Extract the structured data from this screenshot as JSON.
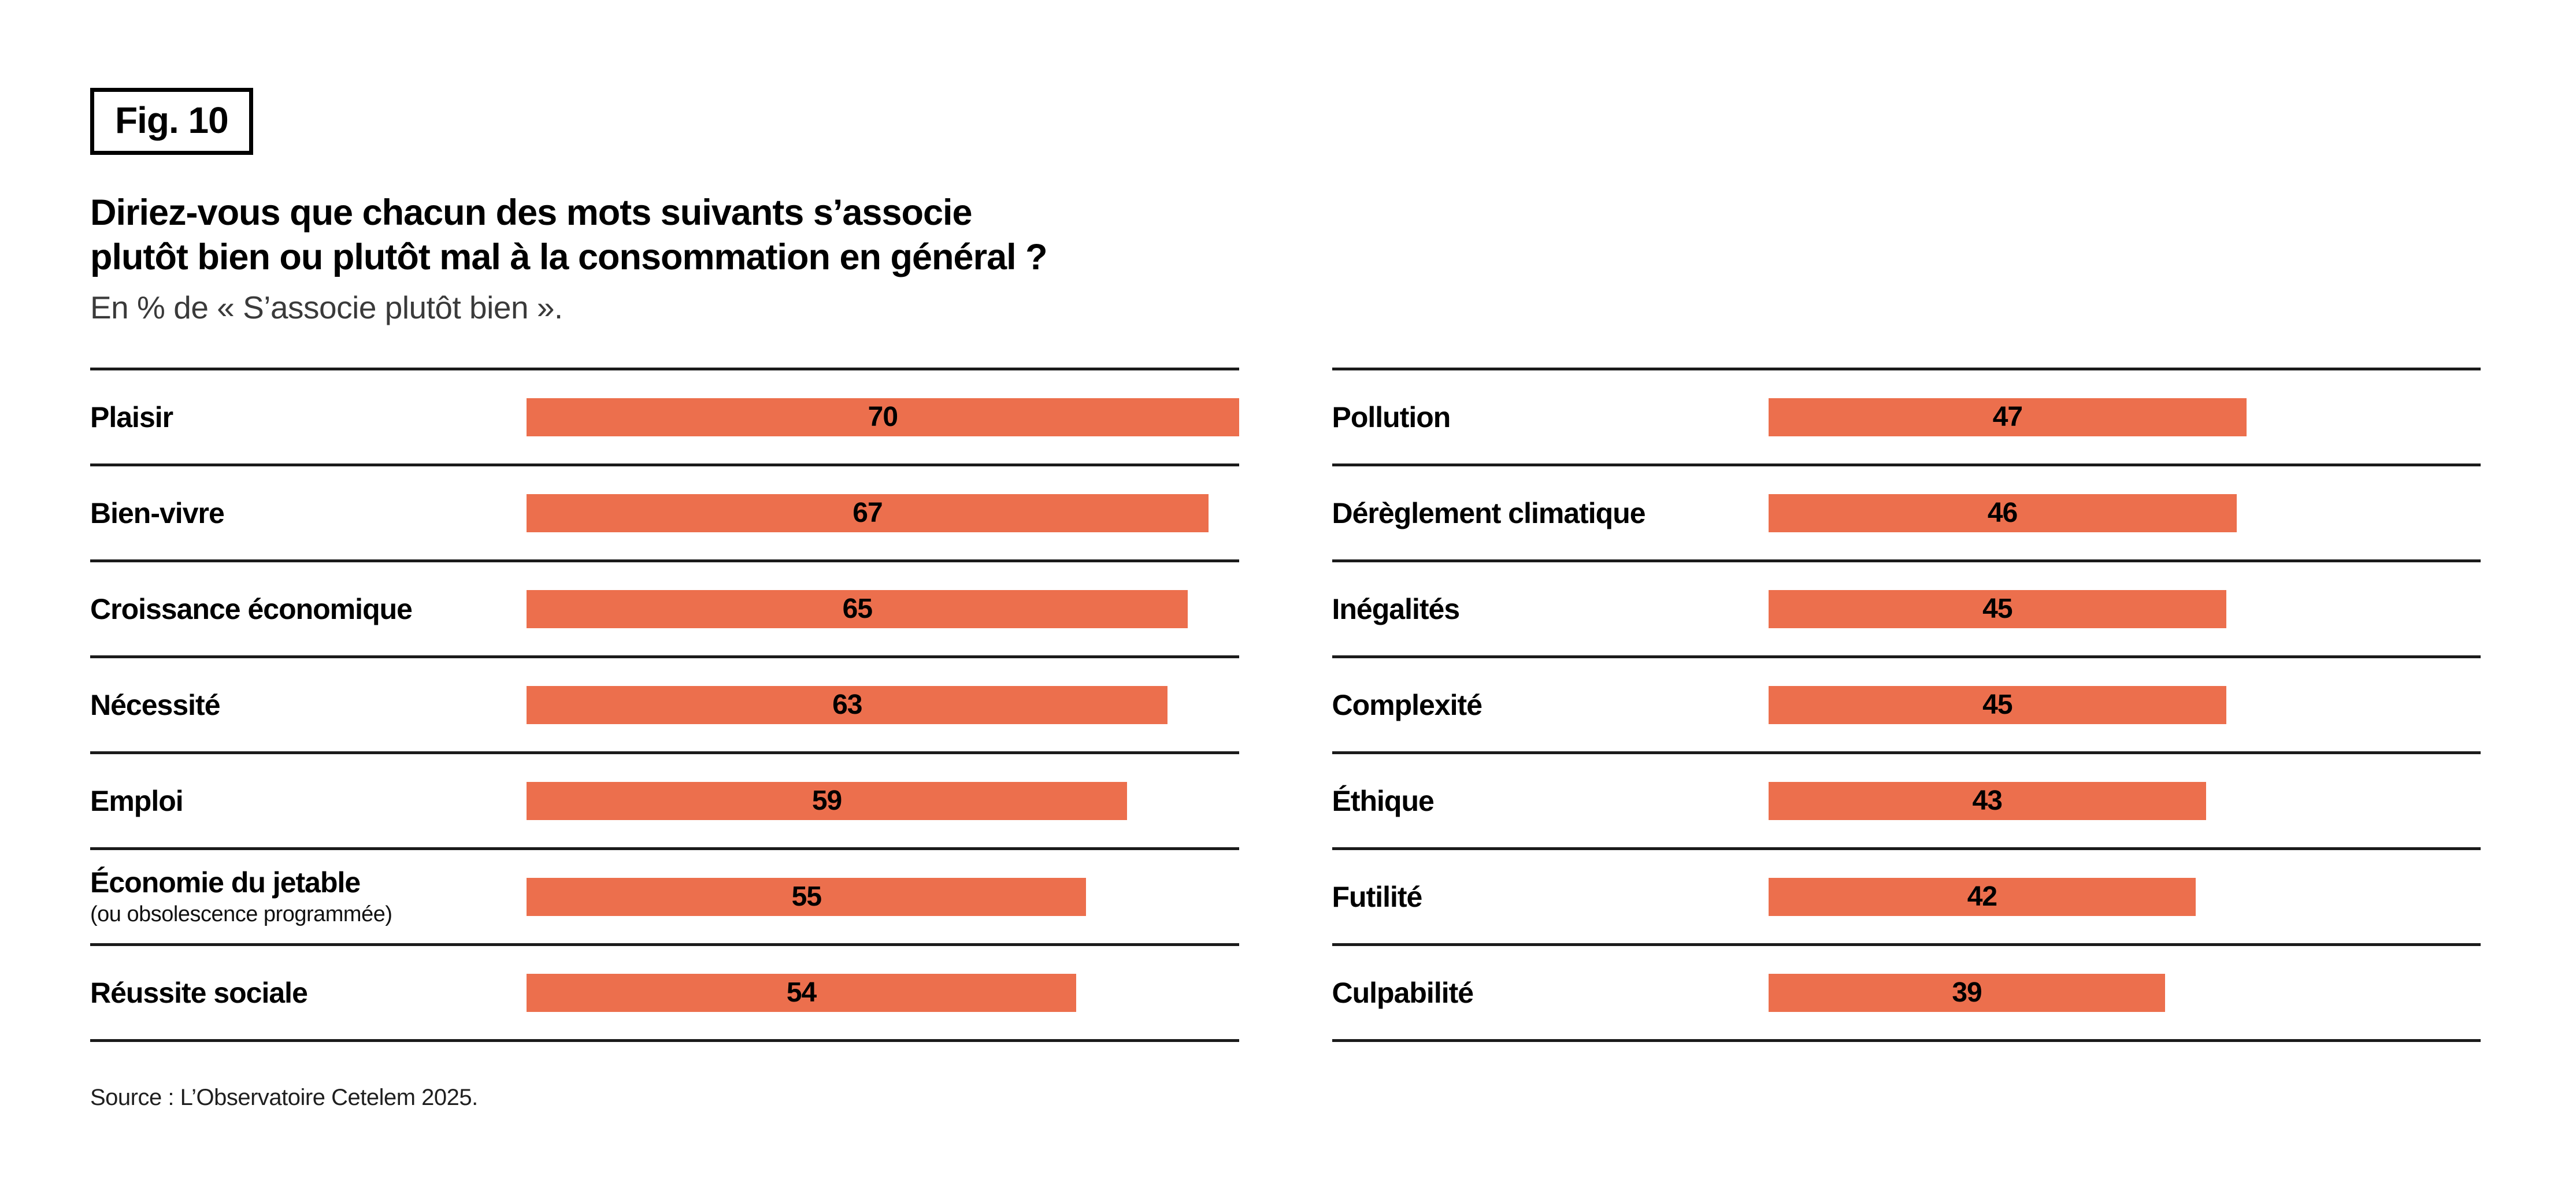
{
  "figure": {
    "label": "Fig. 10"
  },
  "header": {
    "title": "Diriez-vous que chacun des mots suivants s’associe\nplutôt bien ou plutôt mal à la consommation en général ?",
    "subtitle": "En % de « S’associe plutôt bien »."
  },
  "chart_data": {
    "type": "bar",
    "orientation": "horizontal",
    "unit": "%",
    "value_axis_max": 70,
    "bar_color": "#EC6F4D",
    "rule_color": "#1b1b1b",
    "value_label_position": "inside-center",
    "panels": [
      {
        "rows": [
          {
            "label": "Plaisir",
            "value": 70
          },
          {
            "label": "Bien-vivre",
            "value": 67
          },
          {
            "label": "Croissance économique",
            "value": 65
          },
          {
            "label": "Nécessité",
            "value": 63
          },
          {
            "label": "Emploi",
            "value": 59
          },
          {
            "label": "Économie du jetable",
            "sublabel": "(ou obsolescence programmée)",
            "value": 55
          },
          {
            "label": "Réussite sociale",
            "value": 54
          }
        ]
      },
      {
        "rows": [
          {
            "label": "Pollution",
            "value": 47
          },
          {
            "label": "Dérèglement climatique",
            "value": 46
          },
          {
            "label": "Inégalités",
            "value": 45
          },
          {
            "label": "Complexité",
            "value": 45
          },
          {
            "label": "Éthique",
            "value": 43
          },
          {
            "label": "Futilité",
            "value": 42
          },
          {
            "label": "Culpabilité",
            "value": 39
          }
        ]
      }
    ]
  },
  "footer": {
    "source": "Source : L’Observatoire Cetelem 2025."
  }
}
